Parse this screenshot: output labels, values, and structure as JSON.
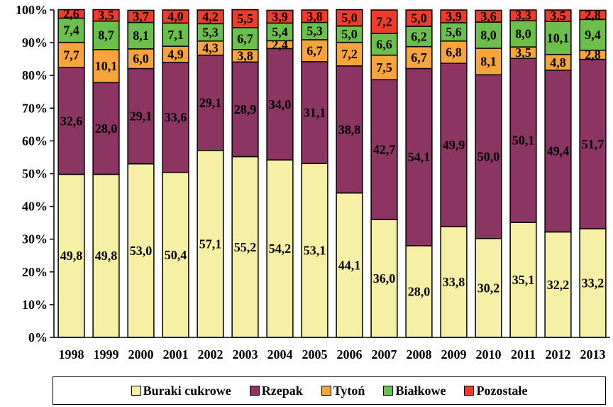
{
  "chart_data": {
    "type": "stacked-bar-100",
    "categories": [
      "1998",
      "1999",
      "2000",
      "2001",
      "2002",
      "2003",
      "2004",
      "2005",
      "2006",
      "2007",
      "2008",
      "2009",
      "2010",
      "2011",
      "2012",
      "2013"
    ],
    "series": [
      {
        "name": "Buraki cukrowe",
        "color": "#f6f0a6",
        "values": [
          49.8,
          49.8,
          53.0,
          50.4,
          57.1,
          55.2,
          54.2,
          53.1,
          44.1,
          36.0,
          28.0,
          33.8,
          30.2,
          35.1,
          32.2,
          33.2
        ],
        "labels": [
          "49,8",
          "49,8",
          "53,0",
          "50,4",
          "57,1",
          "55,2",
          "54,2",
          "53,1",
          "44,1",
          "36,0",
          "28,0",
          "33,8",
          "30,2",
          "35,1",
          "32,2",
          "33,2"
        ]
      },
      {
        "name": "Rzepak",
        "color": "#8c3563",
        "values": [
          32.6,
          28.0,
          29.1,
          33.6,
          29.1,
          28.9,
          34.0,
          31.1,
          38.8,
          42.7,
          54.1,
          49.9,
          50.0,
          50.1,
          49.4,
          51.7
        ],
        "labels": [
          "32,6",
          "28,0",
          "29,1",
          "33,6",
          "29,1",
          "28,9",
          "34,0",
          "31,1",
          "38,8",
          "42,7",
          "54,1",
          "49,9",
          "50,0",
          "50,1",
          "49,4",
          "51,7"
        ]
      },
      {
        "name": "Tytoń",
        "color": "#f7a43a",
        "values": [
          7.7,
          10.1,
          6.0,
          4.9,
          4.3,
          3.8,
          2.4,
          6.7,
          7.2,
          7.5,
          6.7,
          6.8,
          8.1,
          3.5,
          4.8,
          2.8
        ],
        "labels": [
          "7,7",
          "10,1",
          "6,0",
          "4,9",
          "4,3",
          "3,8",
          "2,4",
          "6,7",
          "7,2",
          "7,5",
          "6,7",
          "6,8",
          "8,1",
          "3,5",
          "4,8",
          "2,8"
        ]
      },
      {
        "name": "Białkowe",
        "color": "#6cbf4a",
        "values": [
          7.4,
          8.7,
          8.1,
          7.1,
          5.3,
          6.7,
          5.4,
          5.3,
          5.0,
          6.6,
          6.2,
          5.6,
          8.0,
          8.0,
          10.1,
          9.4
        ],
        "labels": [
          "7,4",
          "8,7",
          "8,1",
          "7,1",
          "5,3",
          "6,7",
          "5,4",
          "5,3",
          "5,0",
          "6,6",
          "6,2",
          "5,6",
          "8,0",
          "8,0",
          "10,1",
          "9,4"
        ]
      },
      {
        "name": "Pozostałe",
        "color": "#ee3b2c",
        "values": [
          2.6,
          3.5,
          3.7,
          4.0,
          4.2,
          5.5,
          3.9,
          3.8,
          5.0,
          7.2,
          5.0,
          3.9,
          3.6,
          3.3,
          3.5,
          2.8
        ],
        "labels": [
          "2,6",
          "3,5",
          "3,7",
          "4,0",
          "4,2",
          "5,5",
          "3,9",
          "3,8",
          "5,0",
          "7,2",
          "5,0",
          "3,9",
          "3,6",
          "3,3",
          "3,5",
          "2,8"
        ]
      }
    ],
    "y_ticks": [
      "0%",
      "10%",
      "20%",
      "30%",
      "40%",
      "50%",
      "60%",
      "70%",
      "80%",
      "90%",
      "100%"
    ],
    "ylim": [
      0,
      100
    ],
    "grid": false,
    "legend_position": "bottom"
  }
}
